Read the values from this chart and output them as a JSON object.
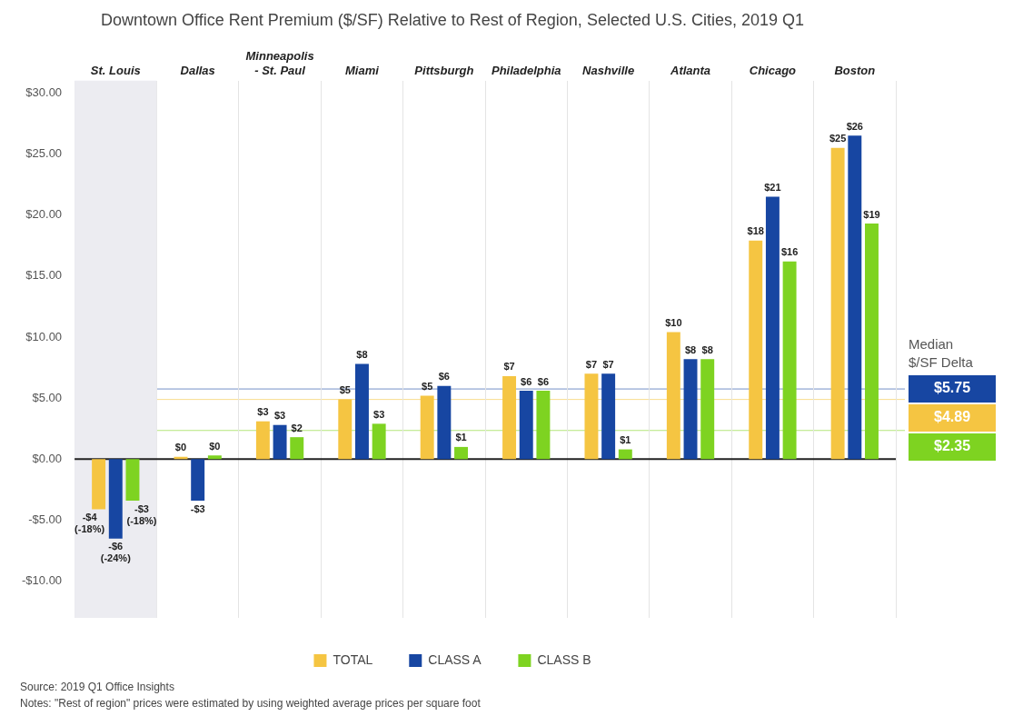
{
  "chart_data": {
    "type": "bar",
    "title": "Downtown Office Rent Premium ($/SF) Relative to Rest of Region, Selected U.S. Cities, 2019 Q1",
    "categories": [
      "St. Louis",
      "Dallas",
      "Minneapolis - St. Paul",
      "Miami",
      "Pittsburgh",
      "Philadelphia",
      "Nashville",
      "Atlanta",
      "Chicago",
      "Boston"
    ],
    "series": [
      {
        "name": "TOTAL",
        "color": "#f5c542",
        "values": [
          -4.1,
          0.2,
          3.1,
          4.9,
          5.2,
          6.8,
          7.0,
          10.4,
          17.9,
          25.5
        ],
        "value_labels": [
          "-$4 (-18%)",
          "$0",
          "$3",
          "$5",
          "$5",
          "$7",
          "$7",
          "$10",
          "$18",
          "$25"
        ]
      },
      {
        "name": "CLASS A",
        "color": "#1746a2",
        "values": [
          -6.5,
          -3.4,
          2.8,
          7.8,
          6.0,
          5.6,
          7.0,
          8.2,
          21.5,
          26.5
        ],
        "value_labels": [
          "-$6 (-24%)",
          "-$3",
          "$3",
          "$8",
          "$6",
          "$6",
          "$7",
          "$8",
          "$21",
          "$26"
        ]
      },
      {
        "name": "CLASS B",
        "color": "#7ed321",
        "values": [
          -3.4,
          0.3,
          1.8,
          2.9,
          1.0,
          5.6,
          0.8,
          8.2,
          16.2,
          19.3
        ],
        "value_labels": [
          "-$3 (-18%)",
          "$0",
          "$2",
          "$3",
          "$1",
          "$6",
          "$1",
          "$8",
          "$16",
          "$19"
        ]
      }
    ],
    "ylim": [
      -13,
      31
    ],
    "yticks": [
      {
        "value": -10,
        "label": "-$10.00"
      },
      {
        "value": -5,
        "label": "-$5.00"
      },
      {
        "value": 0,
        "label": "$0.00"
      },
      {
        "value": 5,
        "label": "$5.00"
      },
      {
        "value": 10,
        "label": "$10.00"
      },
      {
        "value": 15,
        "label": "$15.00"
      },
      {
        "value": 20,
        "label": "$20.00"
      },
      {
        "value": 25,
        "label": "$25.00"
      },
      {
        "value": 30,
        "label": "$30.00"
      }
    ],
    "grid": "x",
    "legend": "bottom",
    "ref_lines": [
      {
        "axis": "y",
        "value": 5.75,
        "label": "$5.75",
        "color": "#1746a2"
      },
      {
        "axis": "y",
        "value": 4.89,
        "label": "$4.89",
        "color": "#f5c542"
      },
      {
        "axis": "y",
        "value": 2.35,
        "label": "$2.35",
        "color": "#7ed321"
      }
    ],
    "bands": [
      {
        "axis": "x",
        "from": "St. Louis",
        "to": "St. Louis",
        "color": "#ececf1"
      }
    ],
    "annotations": [
      "Median $/SF Delta",
      "Source: 2019 Q1 Office Insights",
      "Notes: \"Rest of region\" prices were estimated by using weighted average prices per square foot"
    ]
  }
}
